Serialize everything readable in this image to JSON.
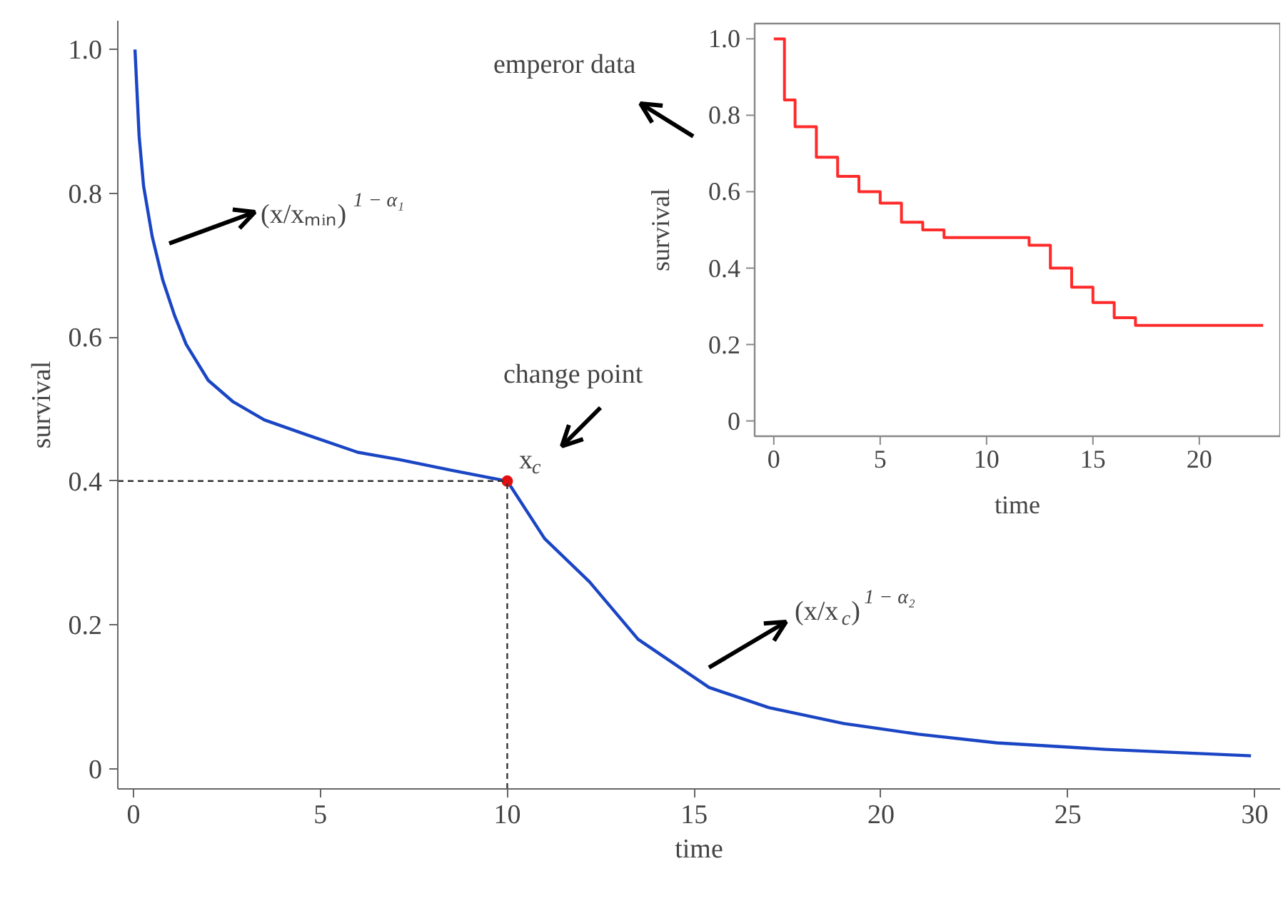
{
  "chart_data": [
    {
      "type": "line",
      "xlabel": "time",
      "ylabel": "survival",
      "xlim": [
        -0.42,
        30.68
      ],
      "ylim": [
        -0.028,
        1.04
      ],
      "xticks": [
        0,
        5,
        10,
        15,
        20,
        25,
        30
      ],
      "yticks": [
        0,
        0.2,
        0.4,
        0.6,
        0.8,
        {
          "value": 1,
          "label": "1.0"
        }
      ],
      "series": [
        {
          "color": "#1a45c4",
          "x": [
            0.04,
            0.15,
            0.27,
            0.5,
            0.78,
            1.1,
            1.41,
            2,
            2.67,
            3.5,
            4.6,
            6,
            7.1,
            8.5,
            10,
            11,
            12.2,
            13.5,
            15.4,
            17,
            19,
            21,
            23.1,
            26,
            29.9
          ],
          "values": [
            1.0,
            0.88,
            0.81,
            0.74,
            0.68,
            0.63,
            0.59,
            0.54,
            0.51,
            0.485,
            0.465,
            0.44,
            0.43,
            0.415,
            0.4,
            0.32,
            0.26,
            0.18,
            0.113,
            0.085,
            0.063,
            0.048,
            0.036,
            0.027,
            0.018
          ]
        },
        {
          "type": "scatter",
          "color": "#e01010",
          "x": [
            10
          ],
          "values": [
            0.4
          ]
        }
      ],
      "ref_lines": [
        {
          "axis": "x",
          "value": 10,
          "color": "#333333",
          "line_style": "dashed"
        },
        {
          "axis": "y",
          "value": 0.4,
          "color": "#333333",
          "line_style": "dashed"
        }
      ],
      "annotations": [
        "(x/xₘᵢₙ)$^{1 − α₁}$",
        "emperor data",
        "change point",
        "x$_{c}$",
        "(x/x$_{c}$)$^{1 − α₂}$"
      ]
    },
    {
      "type": "step",
      "xlabel": "time",
      "ylabel": "survival",
      "xlim": [
        -0.9,
        23.8
      ],
      "ylim": [
        -0.04,
        1.04
      ],
      "xticks": [
        0,
        5,
        10,
        15,
        20
      ],
      "yticks": [
        0,
        0.2,
        0.4,
        0.6,
        0.8,
        {
          "value": 1,
          "label": "1.0"
        }
      ],
      "color": "#ff2a2a",
      "x": [
        0,
        0.5,
        1,
        2,
        3,
        4,
        5,
        6,
        7,
        8,
        12,
        13,
        14,
        15,
        16,
        17,
        23
      ],
      "values": [
        1.0,
        0.84,
        0.77,
        0.69,
        0.64,
        0.6,
        0.57,
        0.52,
        0.5,
        0.48,
        0.46,
        0.4,
        0.35,
        0.31,
        0.27,
        0.25,
        0.25
      ]
    }
  ]
}
